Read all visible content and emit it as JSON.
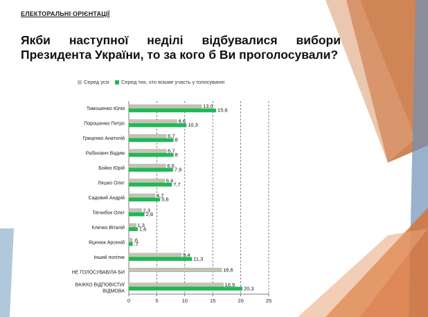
{
  "header": {
    "section": "ЕЛЕКТОРАЛЬНІ ОРІЄНТАЦІЇ",
    "title_words_line1": [
      "Якби",
      "наступної",
      "неділі",
      "відбувалися",
      "вибори"
    ],
    "title_line2": "Президента України, то за кого б Ви проголосували?"
  },
  "colors": {
    "all": "#c4c4b4",
    "voters": "#1db954",
    "accent_orange": "#d9773a",
    "accent_blue": "#8fb0cc"
  },
  "chart_data": {
    "type": "bar",
    "orientation": "horizontal",
    "categories": [
      "Тимошенко Юлія",
      "Порошенко Петро",
      "Гриценко Анатолій",
      "Рабінович Вадим",
      "Бойко Юрій",
      "Ляшко Олег",
      "Садовий Андрій",
      "Тягнибок Олег",
      "Кличко Віталій",
      "Яценюк Арсеній",
      "Інший політик",
      "НЕ ГОЛОСУВАВ/ЛА БИ",
      "ВАЖКО ВІДПОВІСТИ/ ВІДМОВА"
    ],
    "series": [
      {
        "name": "Серед усіх",
        "values": [
          13.0,
          8.6,
          6.7,
          6.7,
          6.6,
          6.4,
          4.7,
          2.3,
          1.3,
          0.6,
          9.4,
          16.6,
          16.9
        ],
        "labels": [
          "13,0",
          "8,6",
          "6,7",
          "6,7",
          "6,6",
          "6,4",
          "4,7",
          "2,3",
          "1,3",
          ",6",
          "9,4",
          "16,6",
          "16,9"
        ]
      },
      {
        "name": "Серед тих, хто візьме участь у голосуванні",
        "values": [
          15.6,
          10.3,
          8,
          8,
          7.9,
          7.7,
          5.6,
          2.8,
          1.6,
          0.7,
          11.3,
          null,
          20.3
        ],
        "labels": [
          "15,6",
          "10,3",
          "8",
          "8",
          "7,9",
          "7,7",
          "5,6",
          "2,8",
          "1,6",
          ",7",
          "11,3",
          null,
          "20,3"
        ]
      }
    ],
    "xlim": [
      0,
      25
    ],
    "xticks": [
      0,
      5,
      10,
      15,
      20,
      25
    ],
    "grid": "dashed vertical",
    "legend": "top"
  }
}
